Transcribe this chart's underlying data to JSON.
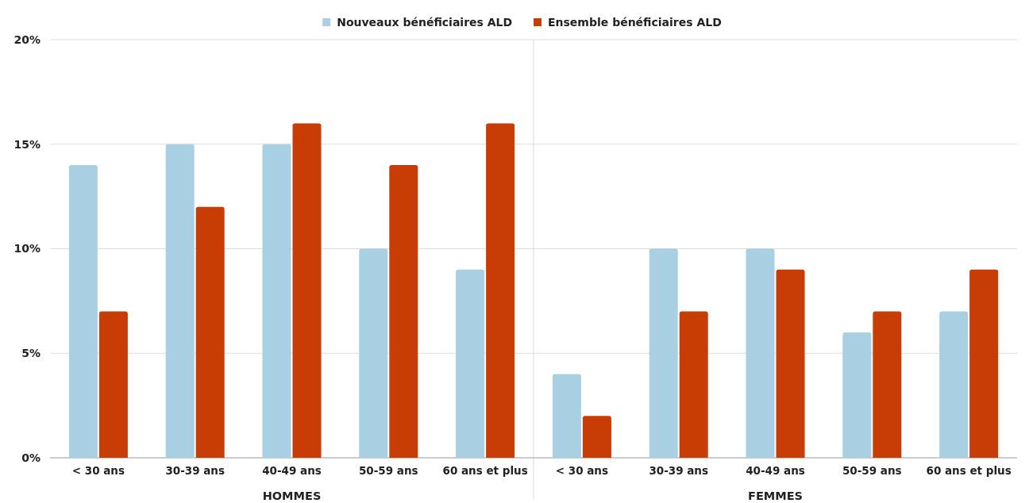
{
  "chart_data": {
    "type": "bar",
    "categories": [
      "< 30 ans",
      "30-39 ans",
      "40-49 ans",
      "50-59 ans",
      "60 ans et plus",
      "< 30 ans",
      "30-39 ans",
      "40-49 ans",
      "50-59 ans",
      "60 ans et plus"
    ],
    "series": [
      {
        "name": "Nouveaux bénéficiaires ALD",
        "color": "#a8cfe2",
        "values": [
          14,
          15,
          15,
          10,
          9,
          4,
          10,
          10,
          6,
          7
        ]
      },
      {
        "name": "Ensemble bénéficiaires ALD",
        "color": "#c83c05",
        "values": [
          7,
          12,
          16,
          14,
          16,
          2,
          7,
          9,
          7,
          9
        ]
      }
    ],
    "ylim": [
      0,
      20
    ],
    "yticks": [
      {
        "value": 0,
        "label": "0%"
      },
      {
        "value": 5,
        "label": "5%"
      },
      {
        "value": 10,
        "label": "10%"
      },
      {
        "value": 15,
        "label": "15%"
      },
      {
        "value": 20,
        "label": "20%"
      }
    ],
    "grid": "y",
    "legend": "top",
    "annotations": [
      "HOMMES",
      "FEMMES"
    ]
  }
}
